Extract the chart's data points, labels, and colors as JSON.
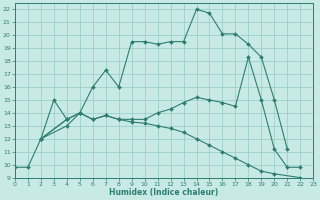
{
  "xlabel": "Humidex (Indice chaleur)",
  "xlim": [
    0,
    23
  ],
  "ylim": [
    9,
    22.5
  ],
  "xtick_vals": [
    0,
    1,
    2,
    3,
    4,
    5,
    6,
    7,
    8,
    9,
    10,
    11,
    12,
    13,
    14,
    15,
    16,
    17,
    18,
    19,
    20,
    21,
    22,
    23
  ],
  "ytick_vals": [
    9,
    10,
    11,
    12,
    13,
    14,
    15,
    16,
    17,
    18,
    19,
    20,
    21,
    22
  ],
  "color": "#2e7d72",
  "bg_color": "#c8eae4",
  "grid_color": "#8fc8c0",
  "lines": [
    {
      "x": [
        0,
        1,
        2,
        3,
        4
      ],
      "y": [
        9.8,
        9.8,
        12.0,
        15.0,
        13.5
      ]
    },
    {
      "x": [
        2,
        4,
        5,
        6,
        7,
        8,
        9,
        10,
        11,
        12,
        13,
        14,
        15,
        16,
        17,
        18,
        19,
        20,
        21
      ],
      "y": [
        12.0,
        13.0,
        14.0,
        16.0,
        17.3,
        16.0,
        19.5,
        19.5,
        19.3,
        19.5,
        19.5,
        22.0,
        21.7,
        20.1,
        20.1,
        19.3,
        18.3,
        15.0,
        11.2
      ]
    },
    {
      "x": [
        2,
        4,
        5,
        6,
        7,
        8,
        9,
        10,
        11,
        12,
        13,
        14,
        15,
        16,
        17,
        18,
        19,
        20,
        22
      ],
      "y": [
        12.0,
        13.5,
        14.0,
        13.5,
        13.8,
        13.5,
        13.3,
        13.2,
        13.0,
        12.8,
        12.5,
        12.0,
        11.5,
        11.0,
        10.5,
        10.0,
        9.5,
        9.3,
        9.0
      ]
    },
    {
      "x": [
        2,
        4,
        5,
        6,
        7,
        8,
        9,
        10,
        11,
        12,
        13,
        14,
        15,
        16,
        17,
        18,
        19,
        20,
        21,
        22
      ],
      "y": [
        12.0,
        13.5,
        14.0,
        13.5,
        13.8,
        13.5,
        13.5,
        13.5,
        14.0,
        14.3,
        14.8,
        15.2,
        15.0,
        14.8,
        14.5,
        18.3,
        15.0,
        11.2,
        9.8,
        9.8
      ]
    }
  ]
}
